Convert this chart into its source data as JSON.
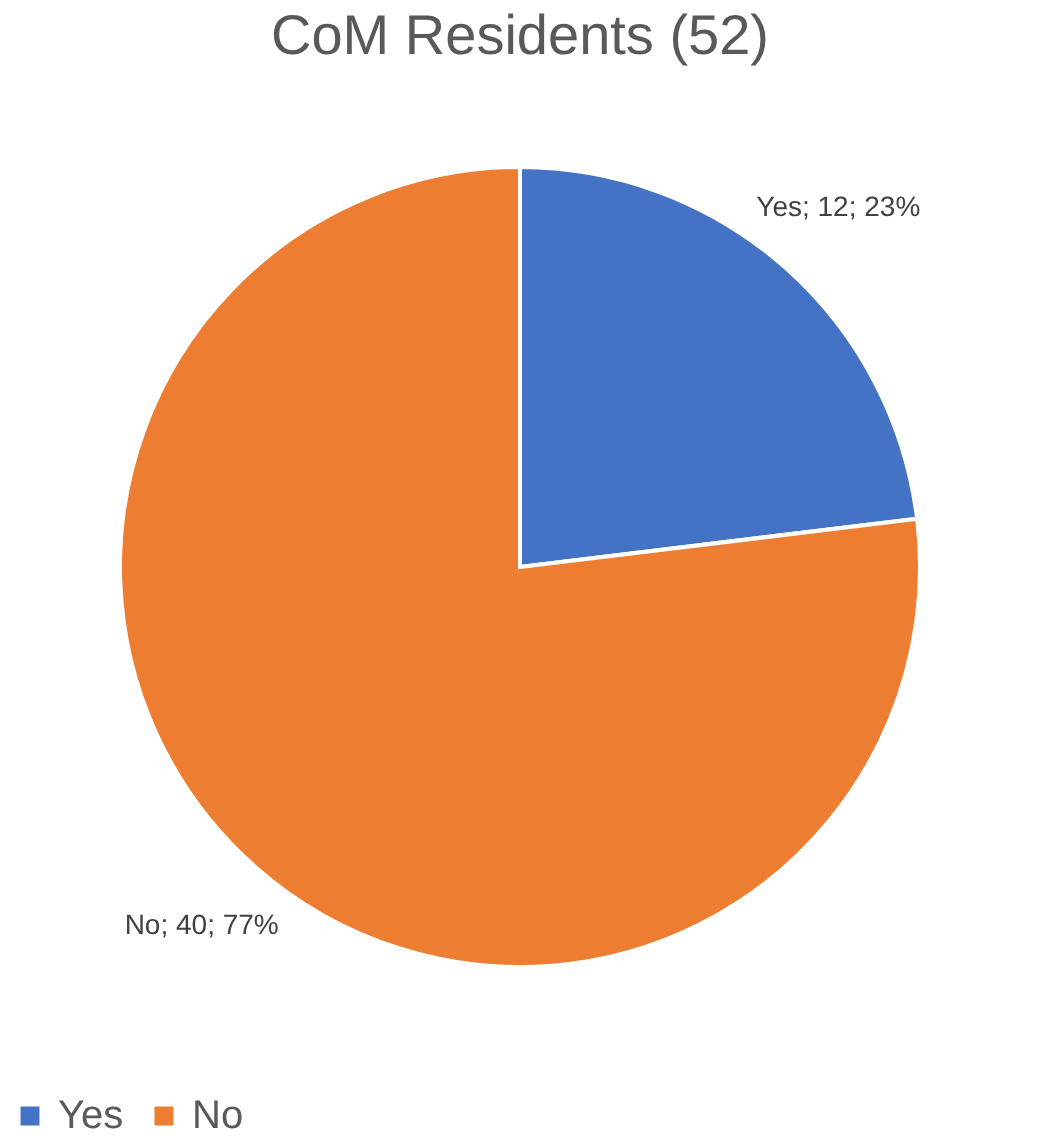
{
  "chart_data": {
    "type": "pie",
    "title": "CoM Residents (52)",
    "categories": [
      "Yes",
      "No"
    ],
    "values": [
      12,
      40
    ],
    "colors": [
      "#4472c4",
      "#ed7d31"
    ],
    "value_labels": [
      "Yes; 12; 23%",
      "No; 40; 77%"
    ],
    "legend": "bottom"
  }
}
